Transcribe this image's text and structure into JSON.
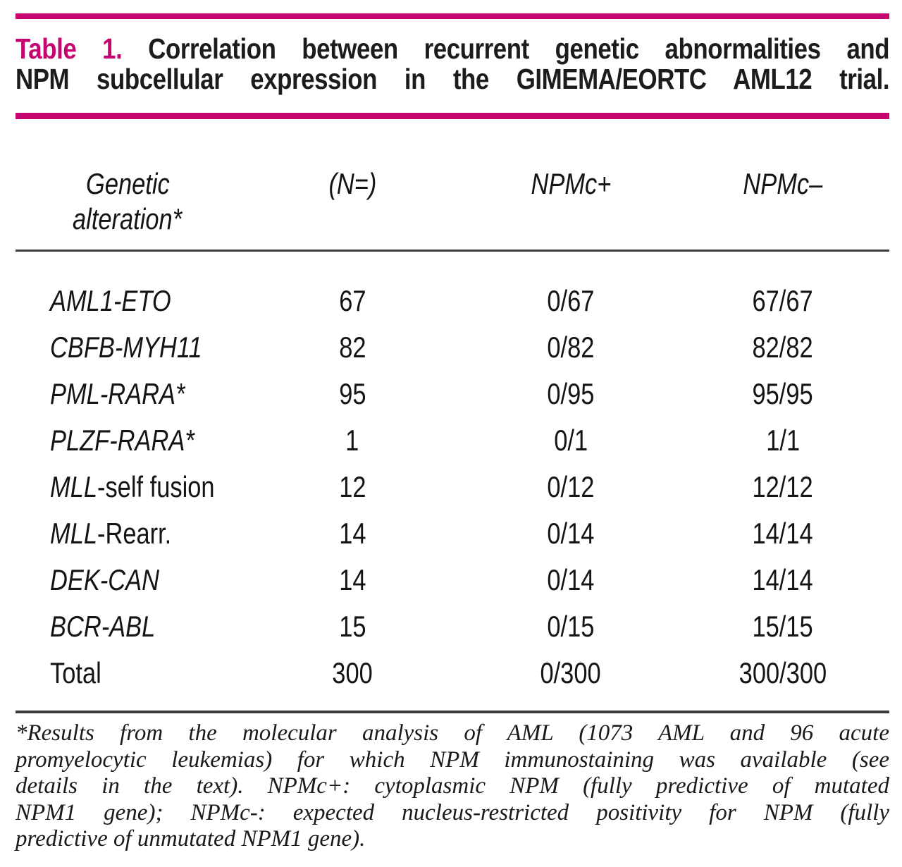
{
  "colors": {
    "accent_magenta": "#C5066F",
    "rule_gray": "#3B3B3B",
    "text": "#161616"
  },
  "title": {
    "label": "Table 1.",
    "line1_rest": "Correlation between recurrent genetic abnormalities and",
    "line2": "NPM subcellular expression in the GIMEMA/EORTC AML12 trial."
  },
  "table": {
    "header": {
      "col1_line1": "Genetic",
      "col1_line2": "alteration*",
      "col2": "(N=)",
      "col3": "NPMc+",
      "col4": "NPMc–"
    },
    "rows": [
      {
        "gene_italic": "AML1-ETO",
        "gene_regular": "",
        "n": "67",
        "npmc_pos": "0/67",
        "npmc_neg": "67/67"
      },
      {
        "gene_italic": "CBFB-MYH11",
        "gene_regular": "",
        "n": "82",
        "npmc_pos": "0/82",
        "npmc_neg": "82/82"
      },
      {
        "gene_italic": "PML-RARA*",
        "gene_regular": "",
        "n": "95",
        "npmc_pos": "0/95",
        "npmc_neg": "95/95"
      },
      {
        "gene_italic": "PLZF-RARA*",
        "gene_regular": "",
        "n": "1",
        "npmc_pos": "0/1",
        "npmc_neg": "1/1"
      },
      {
        "gene_italic": "MLL",
        "gene_regular": "-self fusion",
        "n": "12",
        "npmc_pos": "0/12",
        "npmc_neg": "12/12"
      },
      {
        "gene_italic": "MLL",
        "gene_regular": "-Rearr.",
        "n": "14",
        "npmc_pos": "0/14",
        "npmc_neg": "14/14"
      },
      {
        "gene_italic": "DEK-CAN",
        "gene_regular": "",
        "n": "14",
        "npmc_pos": "0/14",
        "npmc_neg": "14/14"
      },
      {
        "gene_italic": "BCR-ABL",
        "gene_regular": "",
        "n": "15",
        "npmc_pos": "0/15",
        "npmc_neg": "15/15"
      },
      {
        "gene_italic": "",
        "gene_regular": "Total",
        "n": "300",
        "npmc_pos": "0/300",
        "npmc_neg": "300/300"
      }
    ]
  },
  "footnote": {
    "lines": [
      "*Results from the molecular analysis of AML (1073 AML and 96 acute",
      "promyelocytic leukemias) for which NPM immunostaining was available (see",
      "details in the text). NPMc+: cytoplasmic NPM (fully predictive of mutated",
      "NPM1 gene); NPMc-: expected nucleus-restricted positivity for NPM (fully",
      "predictive of unmutated NPM1 gene)."
    ]
  }
}
